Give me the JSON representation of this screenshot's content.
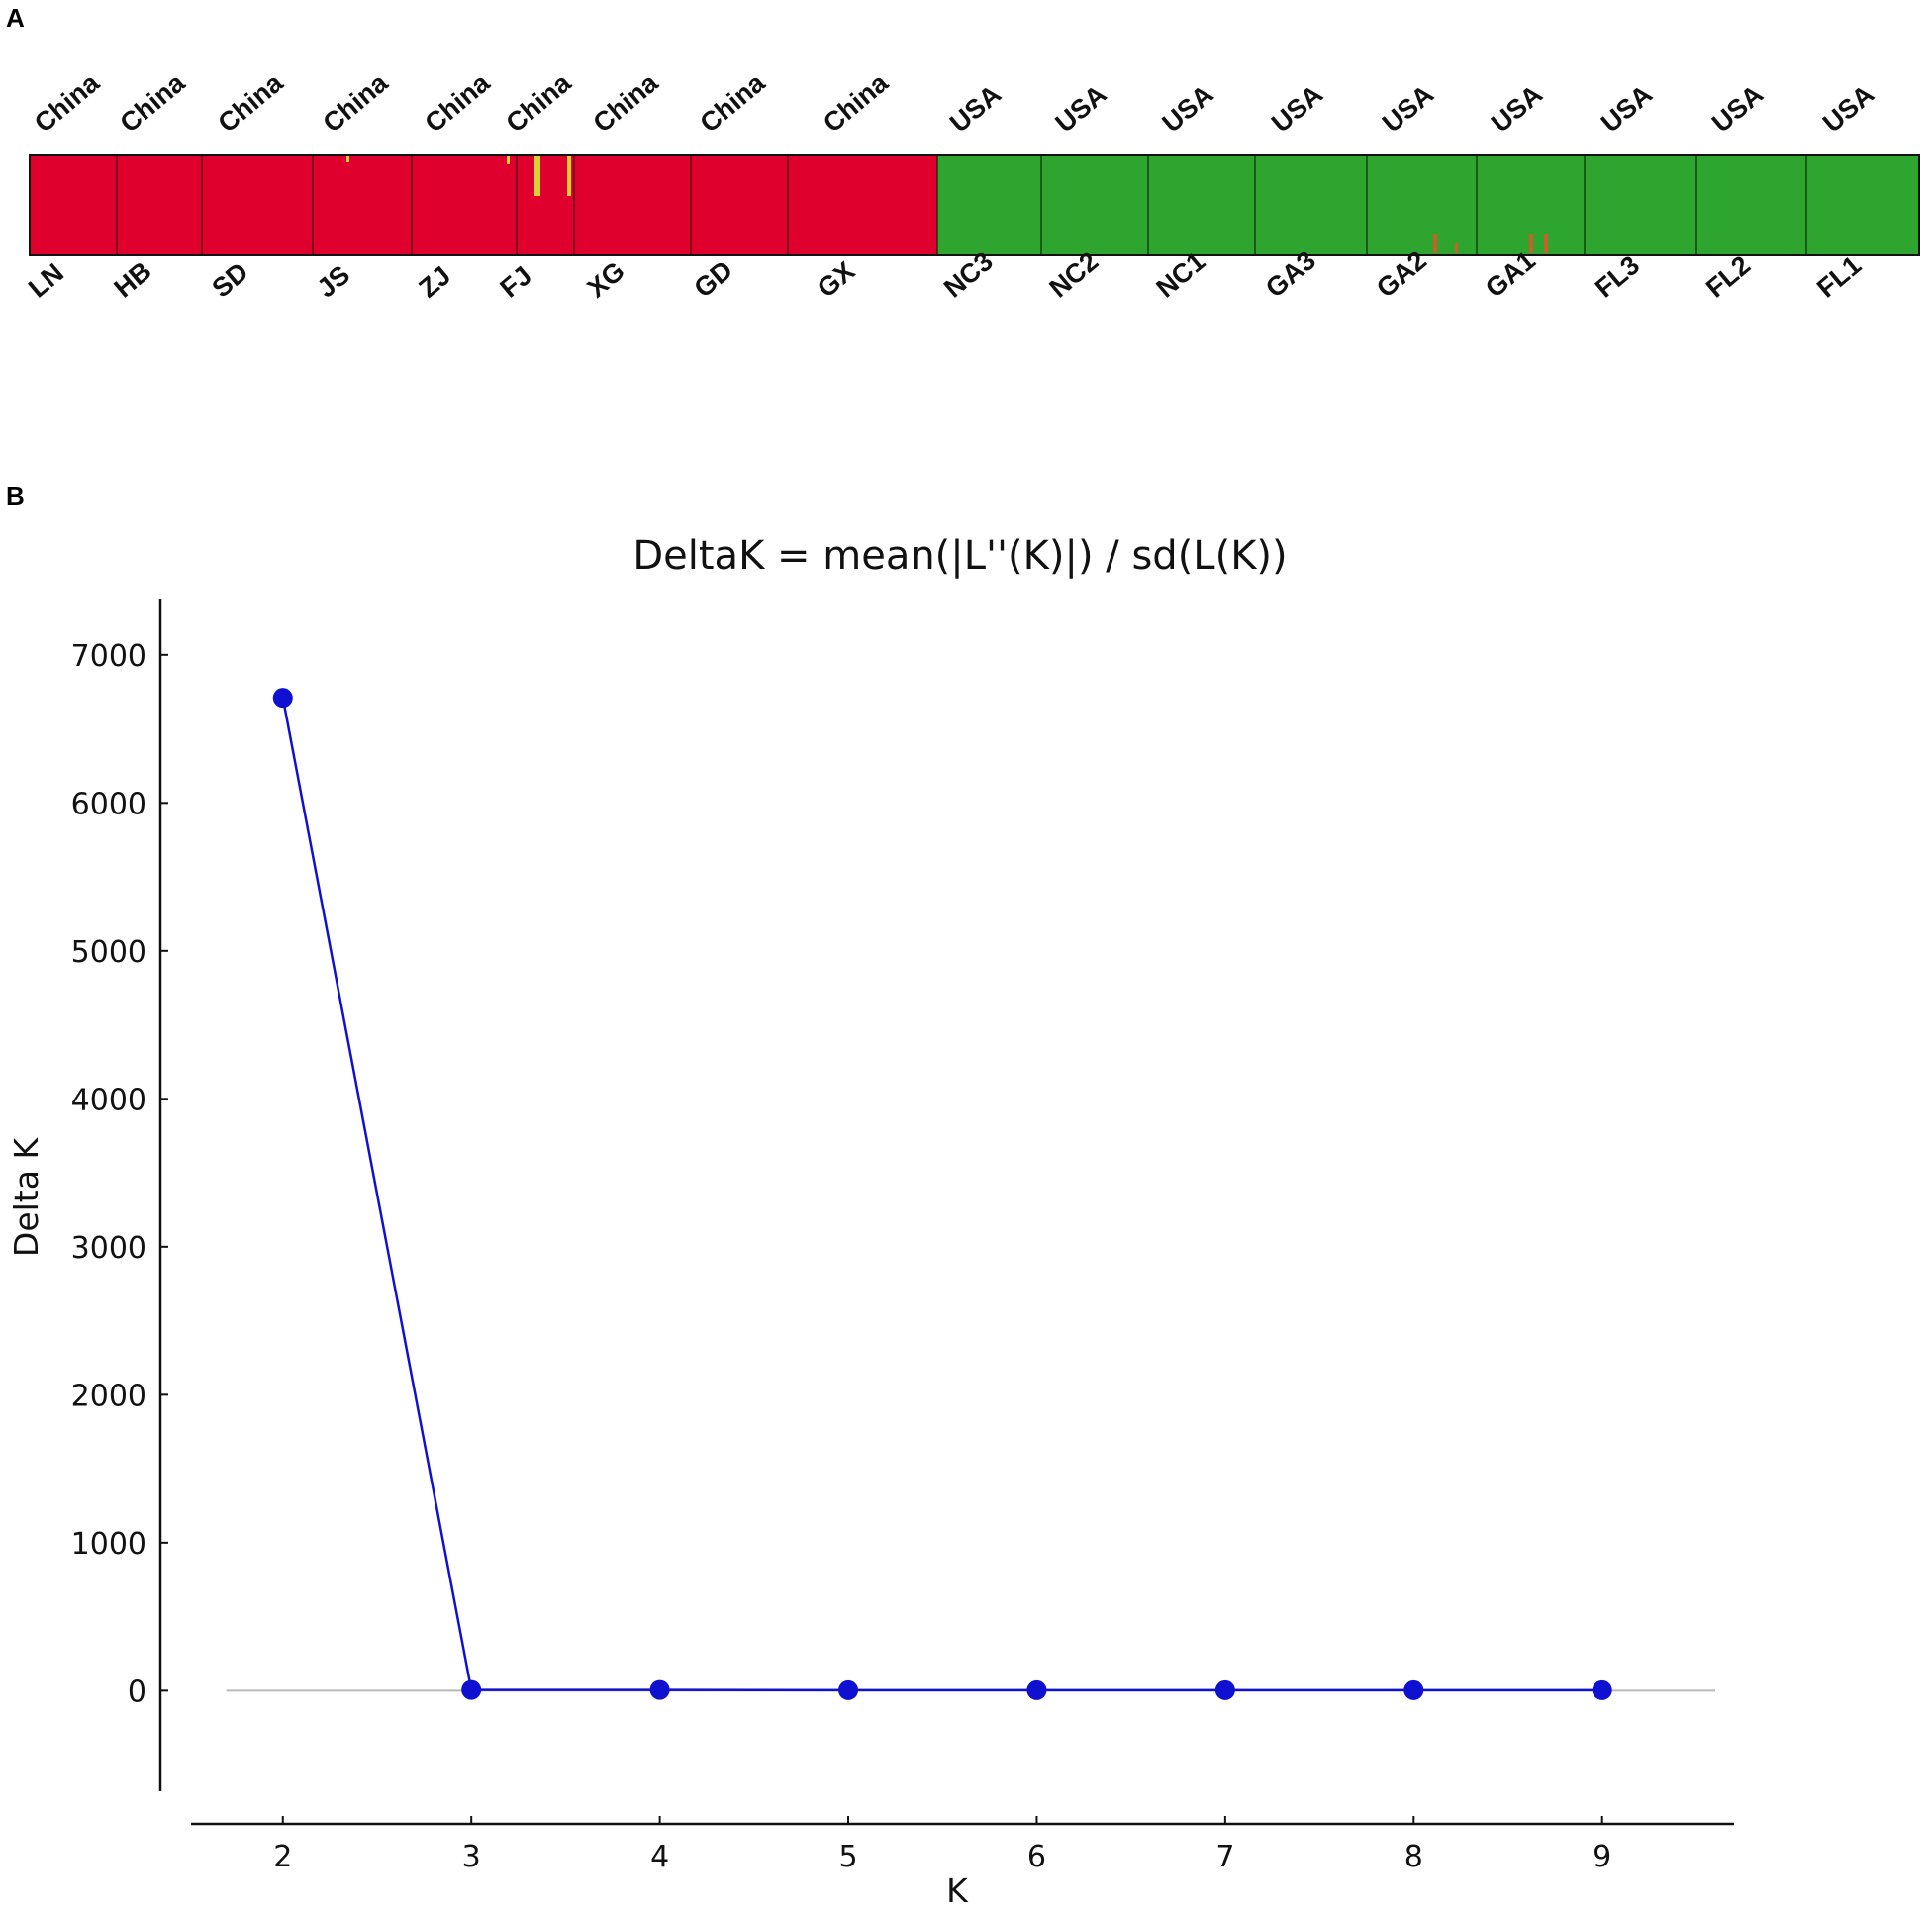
{
  "panels": {
    "a_label": "A",
    "b_label": "B"
  },
  "structure_plot": {
    "type": "stacked-bar",
    "cluster_colors": [
      "#e0002d",
      "#2ea52f",
      "#d8d23a"
    ],
    "regions": [
      "China",
      "China",
      "China",
      "China",
      "China",
      "China",
      "China",
      "China",
      "China",
      "USA",
      "USA",
      "USA",
      "USA",
      "USA",
      "USA",
      "USA",
      "USA",
      "USA"
    ],
    "populations": [
      "LN",
      "HB",
      "SD",
      "JS",
      "ZJ",
      "FJ",
      "XG",
      "GD",
      "GX",
      "NC3",
      "NC2",
      "NC1",
      "GA3",
      "GA2",
      "GA1",
      "FL3",
      "FL2",
      "FL1"
    ],
    "assignment": [
      "red",
      "red",
      "red",
      "red",
      "red",
      "red",
      "red",
      "red",
      "red",
      "green",
      "green",
      "green",
      "green",
      "green",
      "green",
      "green",
      "green",
      "green"
    ]
  },
  "chart_data": {
    "type": "line",
    "title": "DeltaK = mean(|L''(K)|) / sd(L(K))",
    "xlabel": "K",
    "ylabel": "Delta K",
    "x": [
      2,
      3,
      4,
      5,
      6,
      7,
      8,
      9
    ],
    "series": [
      {
        "values": [
          6710,
          5,
          5,
          3,
          3,
          3,
          3,
          3
        ],
        "color": "#1010d0"
      }
    ],
    "xlim": [
      1.35,
      9.7
    ],
    "ylim": [
      -680,
      7380
    ],
    "xticks": [
      2,
      3,
      4,
      5,
      6,
      7,
      8,
      9
    ],
    "yticks": [
      0,
      1000,
      2000,
      3000,
      4000,
      5000,
      6000,
      7000
    ],
    "grid": false,
    "zero_line": true,
    "legend": "none"
  }
}
